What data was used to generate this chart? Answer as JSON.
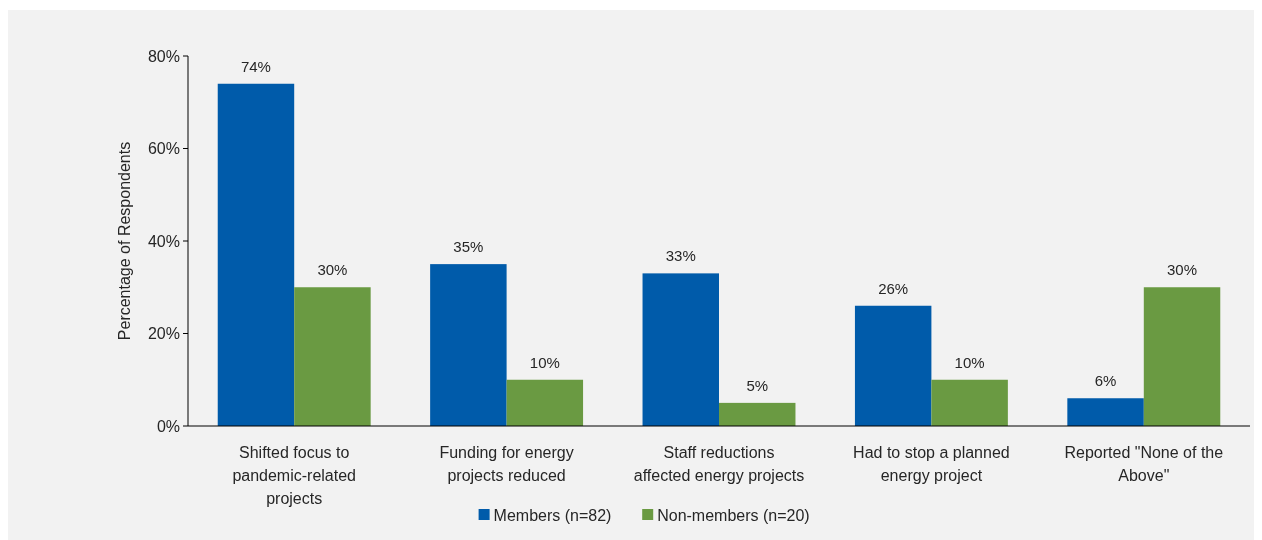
{
  "chart_data": {
    "type": "bar",
    "ylabel": "Percentage of Respondents",
    "categories": [
      "Shifted focus to pandemic-related projects",
      "Funding for energy projects reduced",
      "Staff reductions affected energy projects",
      "Had to stop a planned energy project",
      "Reported \"None of the Above\""
    ],
    "series": [
      {
        "name": "Members (n=82)",
        "color": "#005baa",
        "values": [
          74,
          35,
          33,
          26,
          6
        ],
        "value_labels": [
          "74%",
          "35%",
          "33%",
          "26%",
          "6%"
        ]
      },
      {
        "name": "Non-members (n=20)",
        "color": "#6a9a42",
        "values": [
          30,
          10,
          5,
          10,
          30
        ],
        "value_labels": [
          "30%",
          "10%",
          "5%",
          "10%",
          "30%"
        ]
      }
    ],
    "ylim": [
      0,
      80
    ],
    "yticks": [
      {
        "value": 0,
        "label": "0%"
      },
      {
        "value": 20,
        "label": "20%"
      },
      {
        "value": 40,
        "label": "40%"
      },
      {
        "value": 60,
        "label": "60%"
      },
      {
        "value": 80,
        "label": "80%"
      }
    ],
    "grid": false,
    "legend": "bottom"
  }
}
